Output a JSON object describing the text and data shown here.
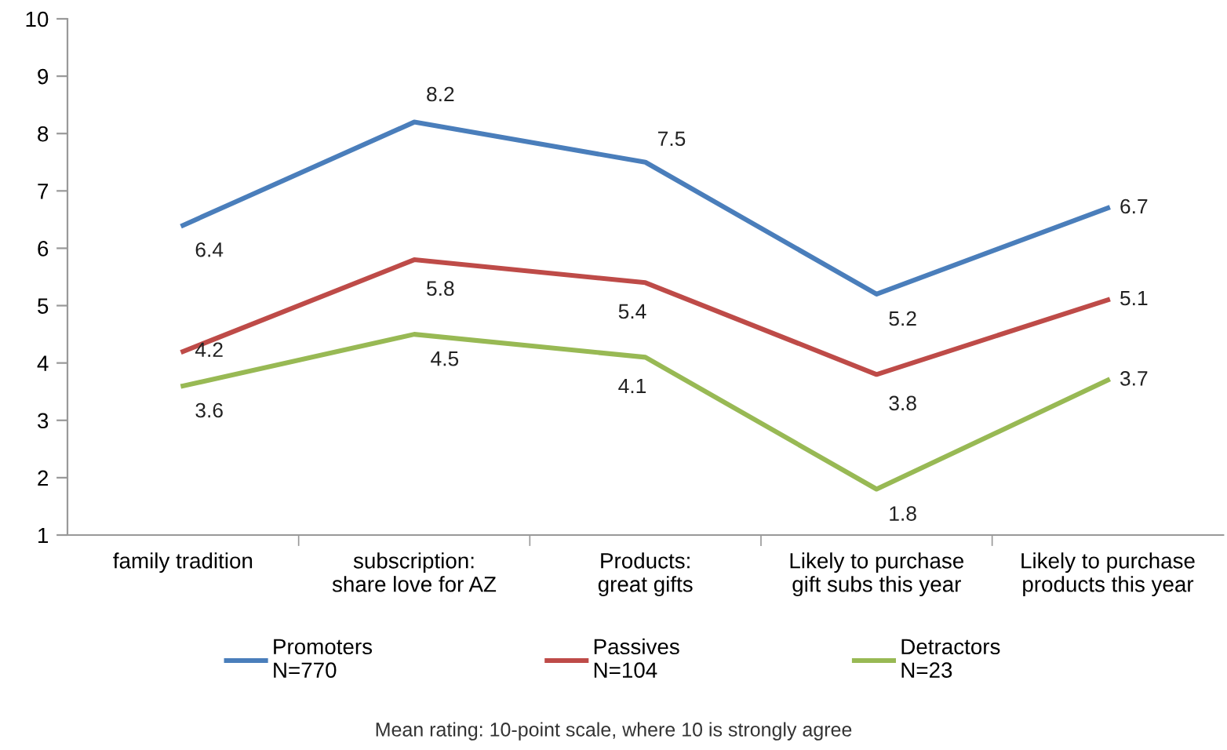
{
  "chart_data": {
    "type": "line",
    "categories": [
      "family tradition",
      "subscription:\nshare love for AZ",
      "Products:\ngreat gifts",
      "Likely to purchase\ngift subs this year",
      "Likely to purchase\nproducts this year"
    ],
    "series": [
      {
        "name": "Promoters\nN=770",
        "color": "#4a7ebb",
        "values": [
          6.4,
          8.2,
          7.5,
          5.2,
          6.7
        ]
      },
      {
        "name": "Passives\nN=104",
        "color": "#be4b48",
        "values": [
          4.2,
          5.8,
          5.4,
          3.8,
          5.1
        ]
      },
      {
        "name": "Detractors\nN=23",
        "color": "#98b954",
        "values": [
          3.6,
          4.5,
          4.1,
          1.8,
          3.7
        ]
      }
    ],
    "ylim": [
      1,
      10
    ],
    "yticks": [
      1,
      2,
      3,
      4,
      5,
      6,
      7,
      8,
      9,
      10
    ],
    "grid": false,
    "legend": "bottom",
    "marker": "none",
    "line_style": "solid",
    "data_labels": true,
    "annotations": [
      "Mean rating: 10-point scale, where 10 is strongly agree"
    ]
  }
}
